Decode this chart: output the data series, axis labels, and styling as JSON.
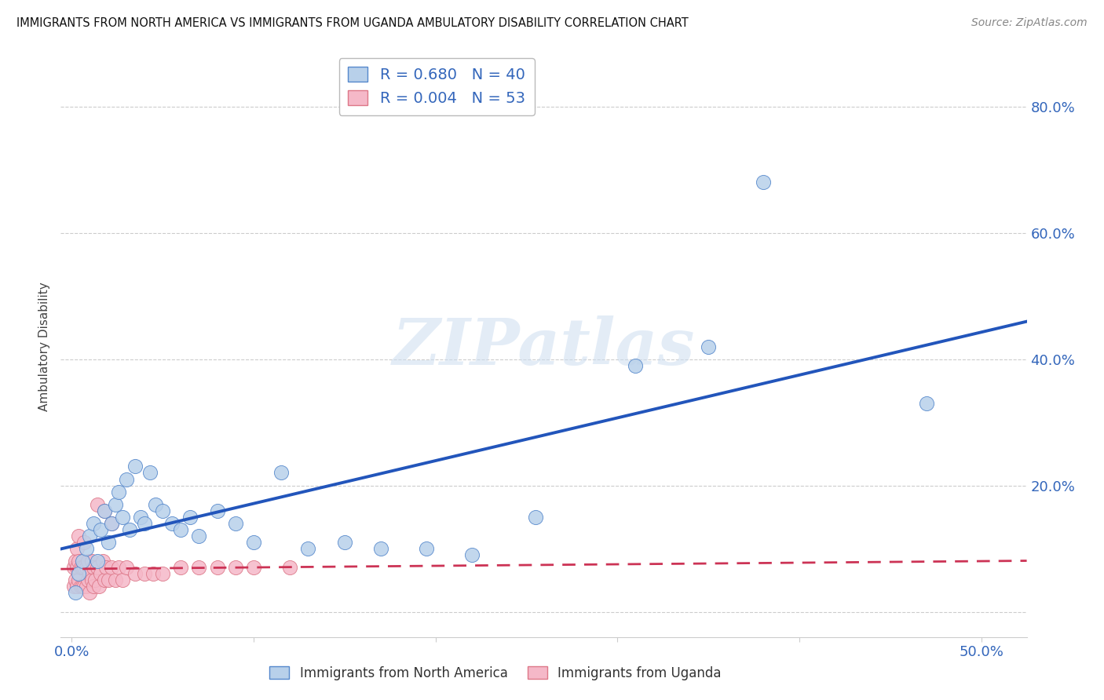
{
  "title": "IMMIGRANTS FROM NORTH AMERICA VS IMMIGRANTS FROM UGANDA AMBULATORY DISABILITY CORRELATION CHART",
  "source": "Source: ZipAtlas.com",
  "ylabel": "Ambulatory Disability",
  "xlim": [
    -0.006,
    0.525
  ],
  "ylim": [
    -0.04,
    0.88
  ],
  "blue_R": 0.68,
  "blue_N": 40,
  "pink_R": 0.004,
  "pink_N": 53,
  "blue_color": "#b8d0ea",
  "blue_edge_color": "#5588cc",
  "blue_line_color": "#2255bb",
  "pink_color": "#f5b8c8",
  "pink_edge_color": "#dd7788",
  "pink_line_color": "#cc3355",
  "grid_color": "#cccccc",
  "background_color": "#ffffff",
  "watermark": "ZIPatlas",
  "blue_x": [
    0.002,
    0.004,
    0.006,
    0.008,
    0.01,
    0.012,
    0.014,
    0.016,
    0.018,
    0.02,
    0.022,
    0.024,
    0.026,
    0.028,
    0.03,
    0.032,
    0.035,
    0.038,
    0.04,
    0.043,
    0.046,
    0.05,
    0.055,
    0.06,
    0.065,
    0.07,
    0.08,
    0.09,
    0.1,
    0.115,
    0.13,
    0.15,
    0.17,
    0.195,
    0.22,
    0.255,
    0.31,
    0.35,
    0.38,
    0.47
  ],
  "blue_y": [
    0.03,
    0.06,
    0.08,
    0.1,
    0.12,
    0.14,
    0.08,
    0.13,
    0.16,
    0.11,
    0.14,
    0.17,
    0.19,
    0.15,
    0.21,
    0.13,
    0.23,
    0.15,
    0.14,
    0.22,
    0.17,
    0.16,
    0.14,
    0.13,
    0.15,
    0.12,
    0.16,
    0.14,
    0.11,
    0.22,
    0.1,
    0.11,
    0.1,
    0.1,
    0.09,
    0.15,
    0.39,
    0.42,
    0.68,
    0.33
  ],
  "pink_x": [
    0.001,
    0.001,
    0.002,
    0.002,
    0.003,
    0.003,
    0.003,
    0.004,
    0.004,
    0.005,
    0.005,
    0.006,
    0.006,
    0.007,
    0.007,
    0.008,
    0.008,
    0.009,
    0.009,
    0.01,
    0.01,
    0.011,
    0.011,
    0.012,
    0.012,
    0.013,
    0.014,
    0.015,
    0.016,
    0.017,
    0.018,
    0.019,
    0.02,
    0.022,
    0.024,
    0.026,
    0.028,
    0.03,
    0.035,
    0.04,
    0.045,
    0.05,
    0.06,
    0.07,
    0.08,
    0.09,
    0.1,
    0.12,
    0.014,
    0.018,
    0.022,
    0.004,
    0.007
  ],
  "pink_y": [
    0.04,
    0.07,
    0.05,
    0.08,
    0.04,
    0.07,
    0.1,
    0.05,
    0.08,
    0.04,
    0.07,
    0.04,
    0.07,
    0.04,
    0.07,
    0.04,
    0.07,
    0.05,
    0.08,
    0.03,
    0.06,
    0.05,
    0.08,
    0.04,
    0.07,
    0.05,
    0.07,
    0.04,
    0.06,
    0.08,
    0.05,
    0.07,
    0.05,
    0.07,
    0.05,
    0.07,
    0.05,
    0.07,
    0.06,
    0.06,
    0.06,
    0.06,
    0.07,
    0.07,
    0.07,
    0.07,
    0.07,
    0.07,
    0.17,
    0.16,
    0.14,
    0.12,
    0.11
  ]
}
